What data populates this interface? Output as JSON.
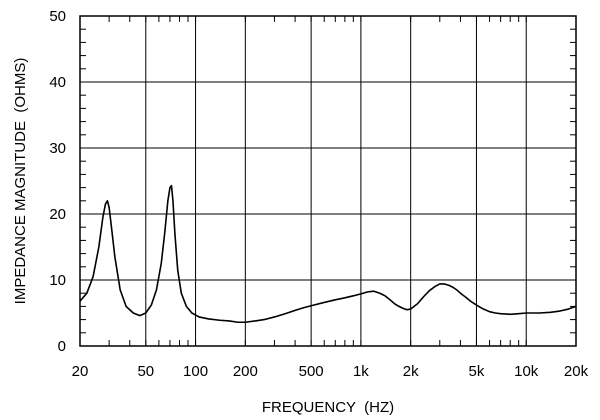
{
  "chart_data": {
    "type": "line",
    "title": "",
    "xlabel": "FREQUENCY  (HZ)",
    "ylabel": "IMPEDANCE MAGNITUDE  (OHMS)",
    "x_scale": "log",
    "xlim": [
      20,
      20000
    ],
    "ylim": [
      0,
      50
    ],
    "grid": true,
    "x_ticks": [
      {
        "value": 20,
        "label": "20"
      },
      {
        "value": 50,
        "label": "50"
      },
      {
        "value": 100,
        "label": "100"
      },
      {
        "value": 200,
        "label": "200"
      },
      {
        "value": 500,
        "label": "500"
      },
      {
        "value": 1000,
        "label": "1k"
      },
      {
        "value": 2000,
        "label": "2k"
      },
      {
        "value": 5000,
        "label": "5k"
      },
      {
        "value": 10000,
        "label": "10k"
      },
      {
        "value": 20000,
        "label": "20k"
      }
    ],
    "y_ticks": [
      {
        "value": 0,
        "label": "0"
      },
      {
        "value": 10,
        "label": "10"
      },
      {
        "value": 20,
        "label": "20"
      },
      {
        "value": 30,
        "label": "30"
      },
      {
        "value": 40,
        "label": "40"
      },
      {
        "value": 50,
        "label": "50"
      }
    ],
    "series": [
      {
        "color": "#000000",
        "x": [
          20,
          22,
          24,
          26,
          27.5,
          28.5,
          29.3,
          30,
          31,
          32.5,
          35,
          38,
          42,
          46,
          50,
          54,
          58,
          62,
          65,
          68,
          70,
          71.5,
          73,
          75,
          78,
          82,
          88,
          95,
          105,
          120,
          140,
          160,
          180,
          200,
          230,
          260,
          300,
          350,
          400,
          450,
          500,
          600,
          700,
          800,
          900,
          1000,
          1100,
          1200,
          1300,
          1400,
          1500,
          1600,
          1700,
          1800,
          1900,
          2000,
          2200,
          2400,
          2600,
          2800,
          3000,
          3200,
          3400,
          3600,
          3800,
          4000,
          4300,
          4600,
          5000,
          5500,
          6000,
          6500,
          7000,
          8000,
          9000,
          10000,
          11000,
          12000,
          14000,
          16000,
          18000,
          20000
        ],
        "y": [
          6.8,
          8.0,
          10.5,
          15.0,
          19.5,
          21.5,
          22.0,
          21.0,
          18.0,
          13.5,
          8.5,
          6.0,
          5.0,
          4.6,
          5.0,
          6.2,
          8.5,
          12.5,
          17.0,
          22.0,
          24.0,
          24.3,
          22.0,
          17.0,
          11.5,
          8.0,
          6.0,
          5.0,
          4.4,
          4.1,
          3.9,
          3.8,
          3.6,
          3.6,
          3.8,
          4.0,
          4.4,
          4.9,
          5.4,
          5.8,
          6.1,
          6.6,
          7.0,
          7.3,
          7.6,
          7.9,
          8.2,
          8.3,
          8.0,
          7.6,
          7.0,
          6.4,
          6.0,
          5.7,
          5.5,
          5.6,
          6.4,
          7.5,
          8.4,
          9.0,
          9.4,
          9.4,
          9.2,
          8.9,
          8.5,
          8.0,
          7.4,
          6.8,
          6.2,
          5.6,
          5.2,
          5.0,
          4.9,
          4.8,
          4.9,
          5.0,
          5.0,
          5.0,
          5.1,
          5.3,
          5.6,
          6.0
        ]
      }
    ]
  }
}
